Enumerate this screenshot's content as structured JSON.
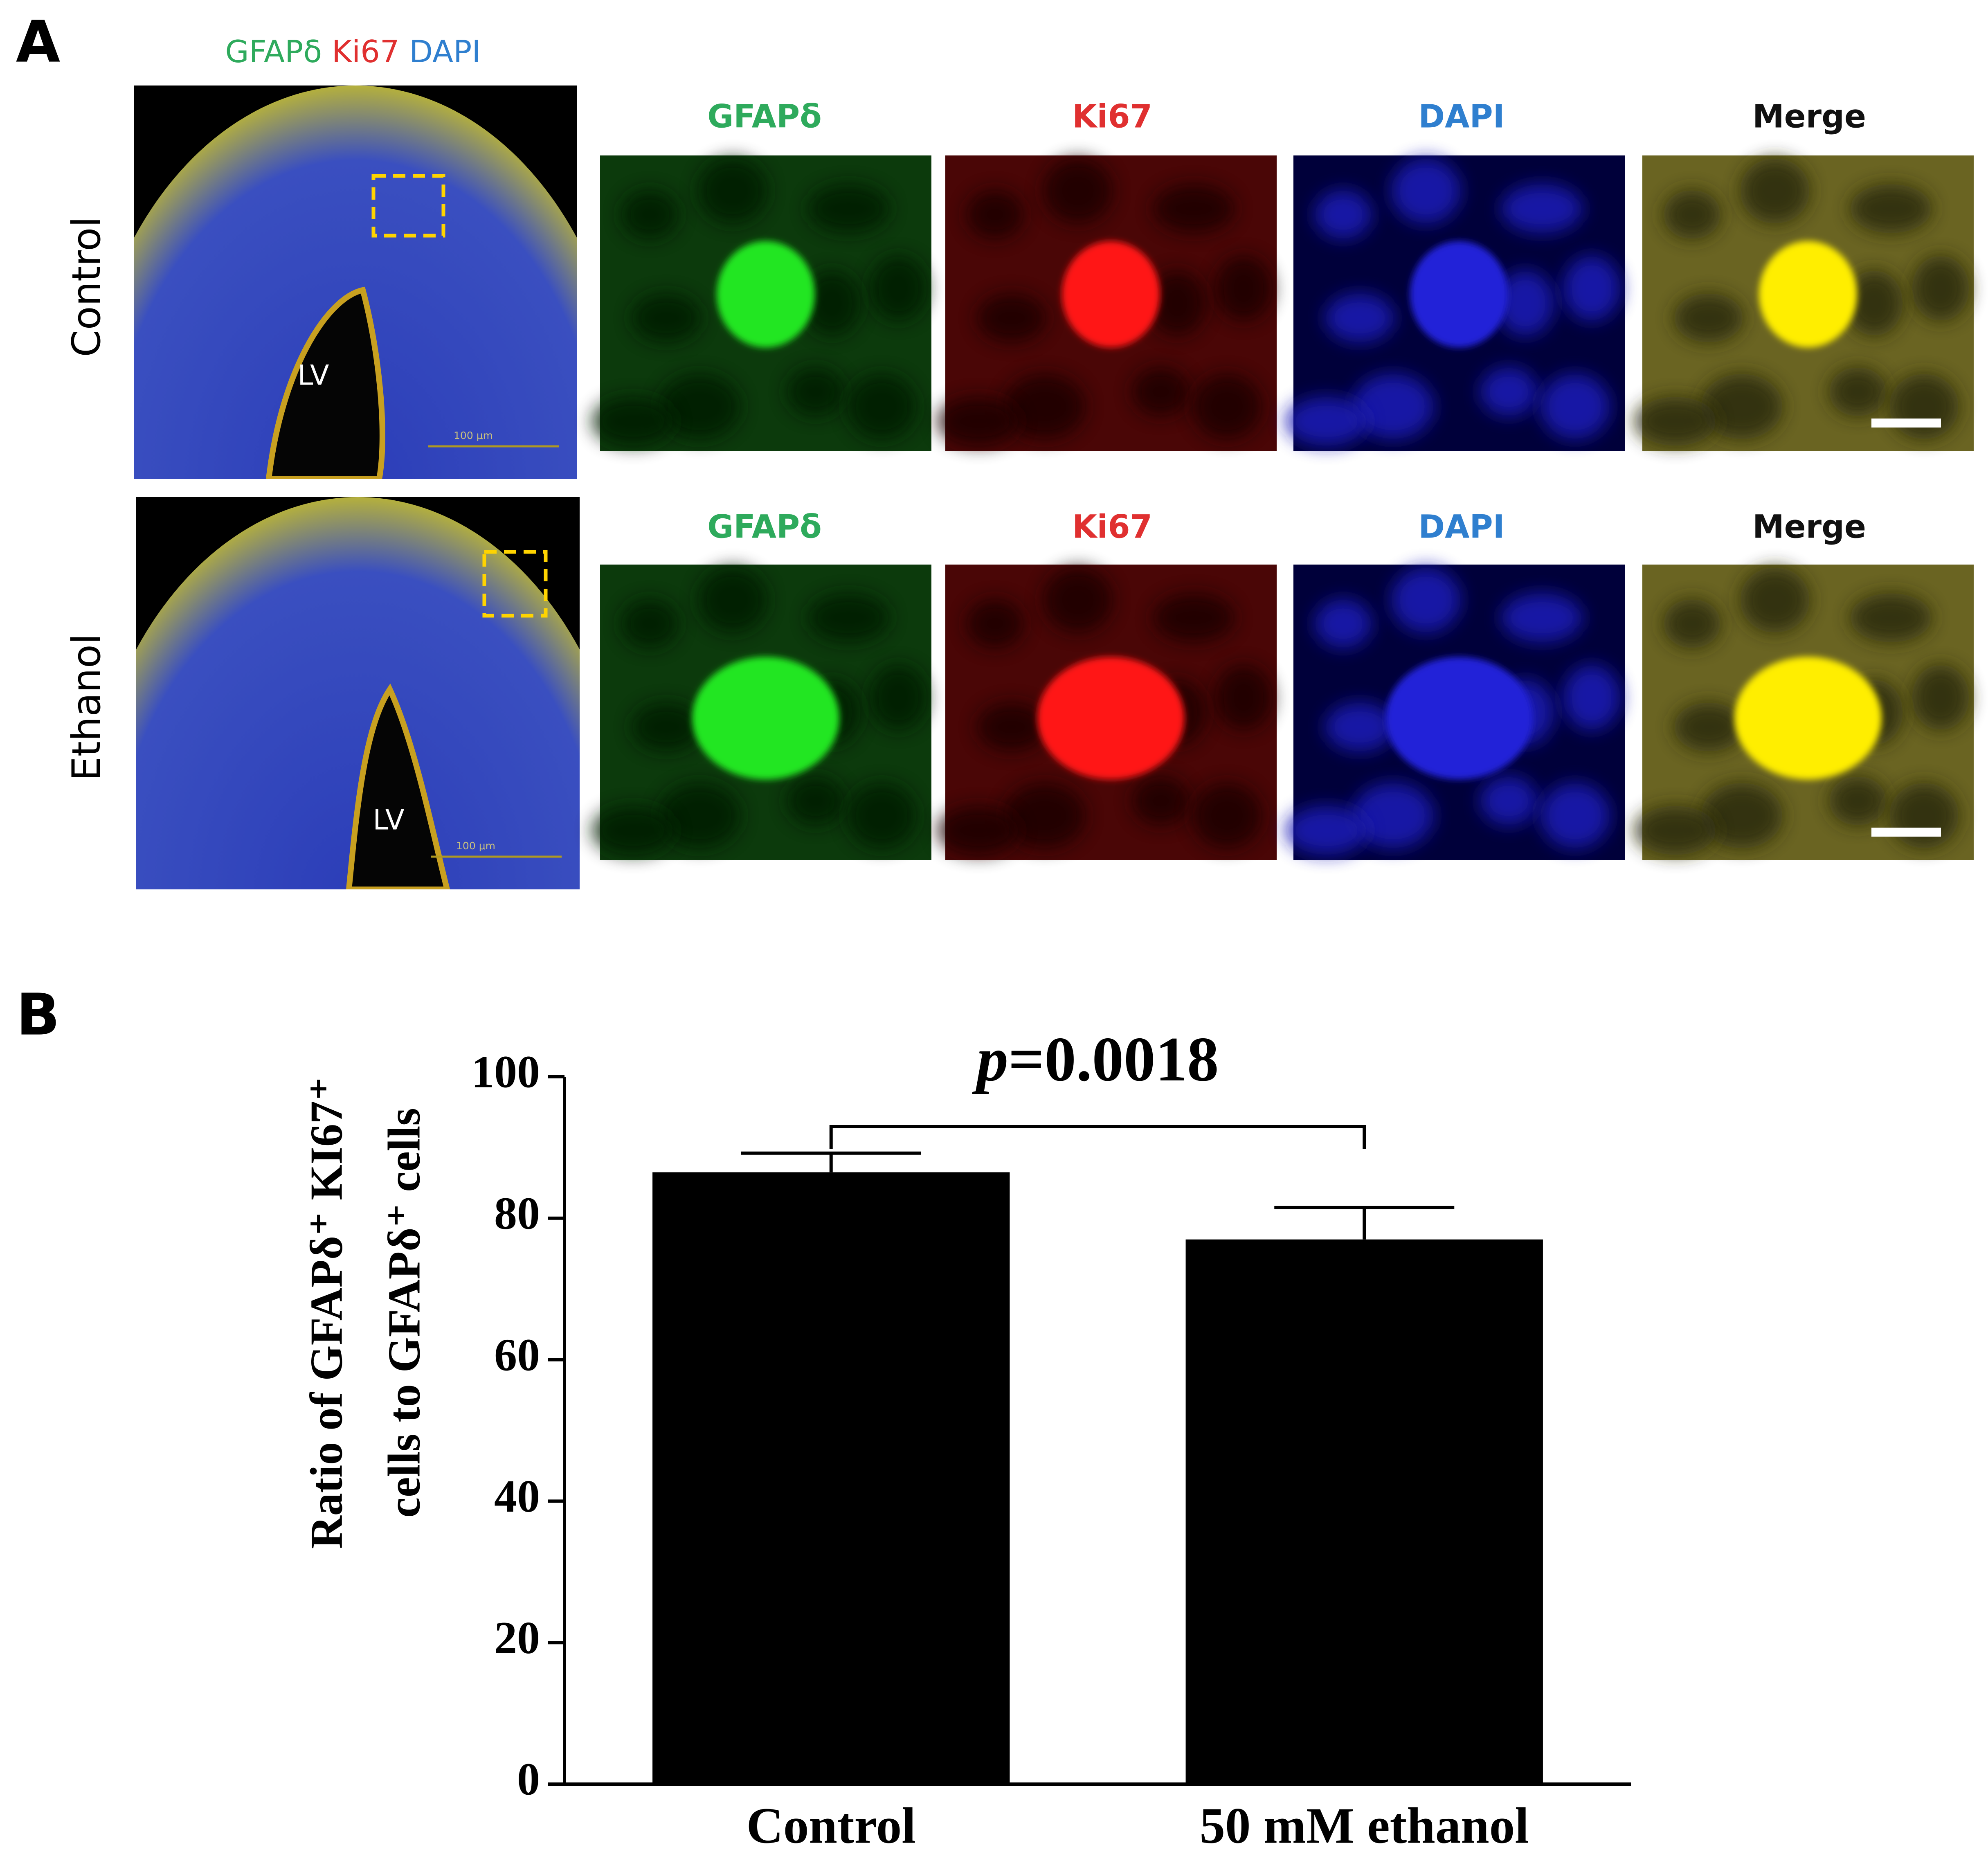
{
  "panel_a": {
    "label": "A",
    "legend": [
      {
        "text": "GFAPδ",
        "color": "#2eaa5c"
      },
      {
        "text": "Ki67",
        "color": "#e03030"
      },
      {
        "text": "DAPI",
        "color": "#2f7fcf"
      }
    ],
    "rows": [
      {
        "label": "Control",
        "columns": [
          "GFAPδ",
          "Ki67",
          "DAPI",
          "Merge"
        ],
        "lv": "LV",
        "scale": "100 μm"
      },
      {
        "label": "Ethanol",
        "columns": [
          "GFAPδ",
          "Ki67",
          "DAPI",
          "Merge"
        ],
        "lv": "LV",
        "scale": "100 μm"
      }
    ]
  },
  "chart_data": {
    "panel_label": "B",
    "type": "bar",
    "categories": [
      "Control",
      "50 mM ethanol"
    ],
    "values": [
      86.5,
      77
    ],
    "errors": [
      2.7,
      4.5
    ],
    "color": "#000000",
    "y_label": [
      "Ratio of GFAPδ⁺ KI67⁺",
      "cells to GFAPδ⁺ cells"
    ],
    "annotation": [
      "p",
      "=0.0018"
    ],
    "ylim": [
      0,
      100
    ],
    "yticks": [
      0,
      20,
      40,
      60,
      80,
      100
    ]
  }
}
